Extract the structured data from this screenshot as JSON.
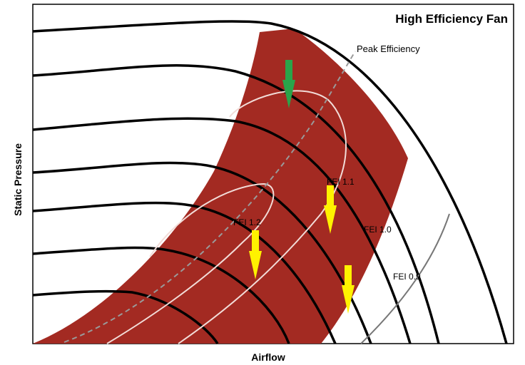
{
  "title": "High Efficiency Fan",
  "axes": {
    "x_label": "Airflow",
    "y_label": "Static Pressure"
  },
  "peak_label": "Peak Efficiency",
  "fei_labels": {
    "fei_12": "FEI 1.2",
    "fei_11": "FEI 1.1",
    "fei_10": "FEI 1.0",
    "fei_09": "FEI 0.9"
  },
  "colors": {
    "operating_region": "#a32a22",
    "fan_curve": "#000000",
    "peak_line": "#9a9a9a",
    "contour": "#f2dcd8",
    "fei_09_line": "#777777",
    "arrow_green": "#2aa44a",
    "arrow_yellow": "#fff200"
  },
  "icons": {
    "arrows": [
      "down-arrow-icon"
    ]
  }
}
